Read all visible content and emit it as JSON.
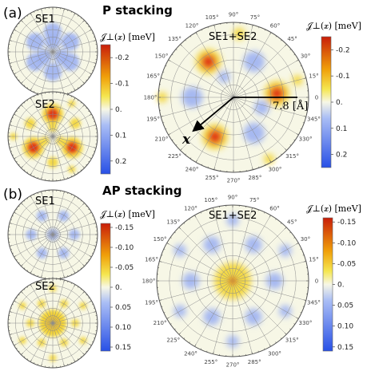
{
  "panel_a": {
    "label": "(a)",
    "stacking_title": "P stacking",
    "small_plot_labels": [
      "SE1",
      "SE2"
    ],
    "large_plot_label": "SE1+SE2",
    "radius_label": "7.8 [Å]",
    "vector_label": "x",
    "colorbar": {
      "title": "𝒥⊥(𝒙) [meV]",
      "ticks": [
        "-0.2",
        "-0.1",
        "0.",
        "0.1",
        "0.2"
      ],
      "range": [
        -0.25,
        0.25
      ]
    }
  },
  "panel_b": {
    "label": "(b)",
    "stacking_title": "AP stacking",
    "small_plot_labels": [
      "SE1",
      "SE2"
    ],
    "large_plot_label": "SE1+SE2",
    "colorbar": {
      "title": "𝒥⊥(𝒙) [meV]",
      "ticks": [
        "-0.15",
        "-0.10",
        "-0.05",
        "0.",
        "0.05",
        "0.10",
        "0.15"
      ],
      "range": [
        -0.16,
        0.16
      ]
    }
  },
  "angle_ticks": [
    "0",
    "15°",
    "30°",
    "45°",
    "60°",
    "75°",
    "90°",
    "105°",
    "120°",
    "135°",
    "150°",
    "165°",
    "180°",
    "195°",
    "210°",
    "225°",
    "240°",
    "255°",
    "270°",
    "285°",
    "300°",
    "315°",
    "330°",
    "345°"
  ],
  "colors": {
    "negative": "#c81e0a",
    "positive": "#2850e6",
    "zero": "#f7f7e6",
    "grid": "#8c8c8c"
  }
}
